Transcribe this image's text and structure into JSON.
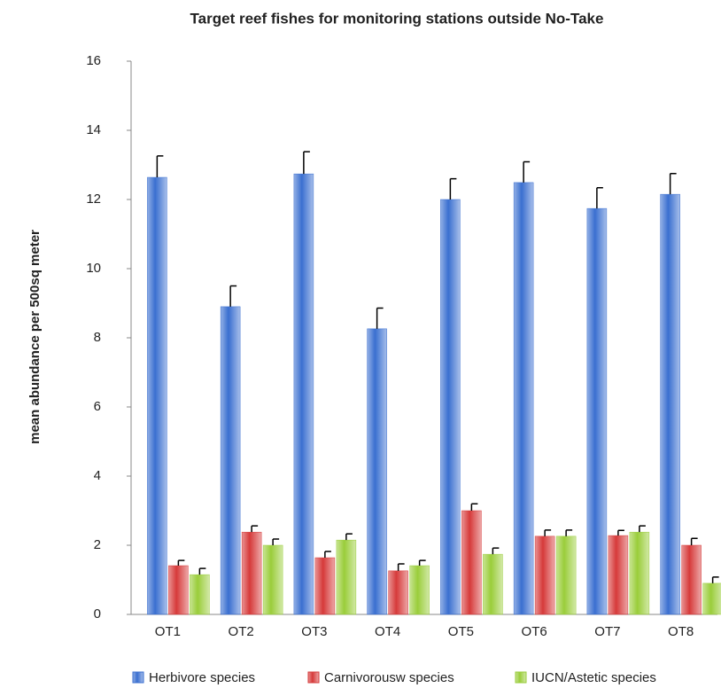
{
  "chart_data": {
    "type": "bar",
    "title": "Target reef fishes for monitoring stations outside No-Take",
    "y_label": "mean abundance per 500sq meter",
    "categories": [
      "OT1",
      "OT2",
      "OT3",
      "OT4",
      "OT5",
      "OT6",
      "OT7",
      "OT8"
    ],
    "series": [
      {
        "name": "Herbivore species",
        "color": "#3a6fd0",
        "values": [
          12.64,
          8.9,
          12.74,
          8.26,
          12.0,
          12.49,
          11.74,
          12.15
        ],
        "errors": [
          0.62,
          0.6,
          0.64,
          0.6,
          0.6,
          0.6,
          0.6,
          0.6
        ]
      },
      {
        "name": "Carnivorousw species",
        "color": "#d63a3a",
        "values": [
          1.41,
          2.38,
          1.64,
          1.26,
          3.0,
          2.26,
          2.28,
          2.0
        ],
        "errors": [
          0.15,
          0.18,
          0.18,
          0.2,
          0.2,
          0.18,
          0.15,
          0.2
        ]
      },
      {
        "name": "IUCN/Astetic species",
        "color": "#9acd3a",
        "values": [
          1.15,
          2.0,
          2.15,
          1.41,
          1.74,
          2.26,
          2.38,
          0.9
        ],
        "errors": [
          0.18,
          0.18,
          0.18,
          0.15,
          0.18,
          0.18,
          0.18,
          0.18
        ]
      }
    ],
    "ylim": [
      0,
      16
    ],
    "yticks": [
      0,
      2,
      4,
      6,
      8,
      10,
      12,
      14,
      16
    ],
    "grid": false,
    "legend": "bottom"
  }
}
